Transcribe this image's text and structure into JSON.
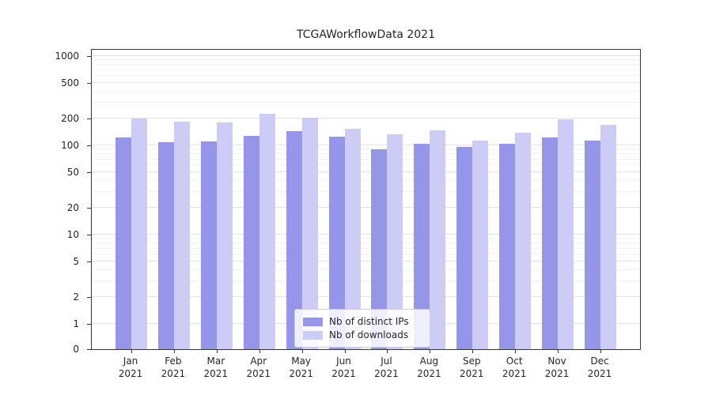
{
  "chart_data": {
    "type": "bar",
    "title": "TCGAWorkflowData 2021",
    "xlabel": "",
    "ylabel": "",
    "yscale": "symlog",
    "ylim": [
      0,
      1000
    ],
    "grid": true,
    "legend_position": "lower center",
    "yticks": [
      0,
      1,
      2,
      5,
      10,
      20,
      50,
      100,
      200,
      500,
      1000
    ],
    "categories": [
      "Jan 2021",
      "Feb 2021",
      "Mar 2021",
      "Apr 2021",
      "May 2021",
      "Jun 2021",
      "Jul 2021",
      "Aug 2021",
      "Sep 2021",
      "Oct 2021",
      "Nov 2021",
      "Dec 2021"
    ],
    "series": [
      {
        "name": "Nb of distinct IPs",
        "color": "#9596ea",
        "values": [
          122,
          108,
          110,
          128,
          143,
          124,
          90,
          104,
          97,
          105,
          123,
          114
        ]
      },
      {
        "name": "Nb of downloads",
        "color": "#cdccf6",
        "values": [
          200,
          186,
          181,
          224,
          205,
          155,
          134,
          147,
          112,
          140,
          197,
          170
        ]
      }
    ]
  }
}
